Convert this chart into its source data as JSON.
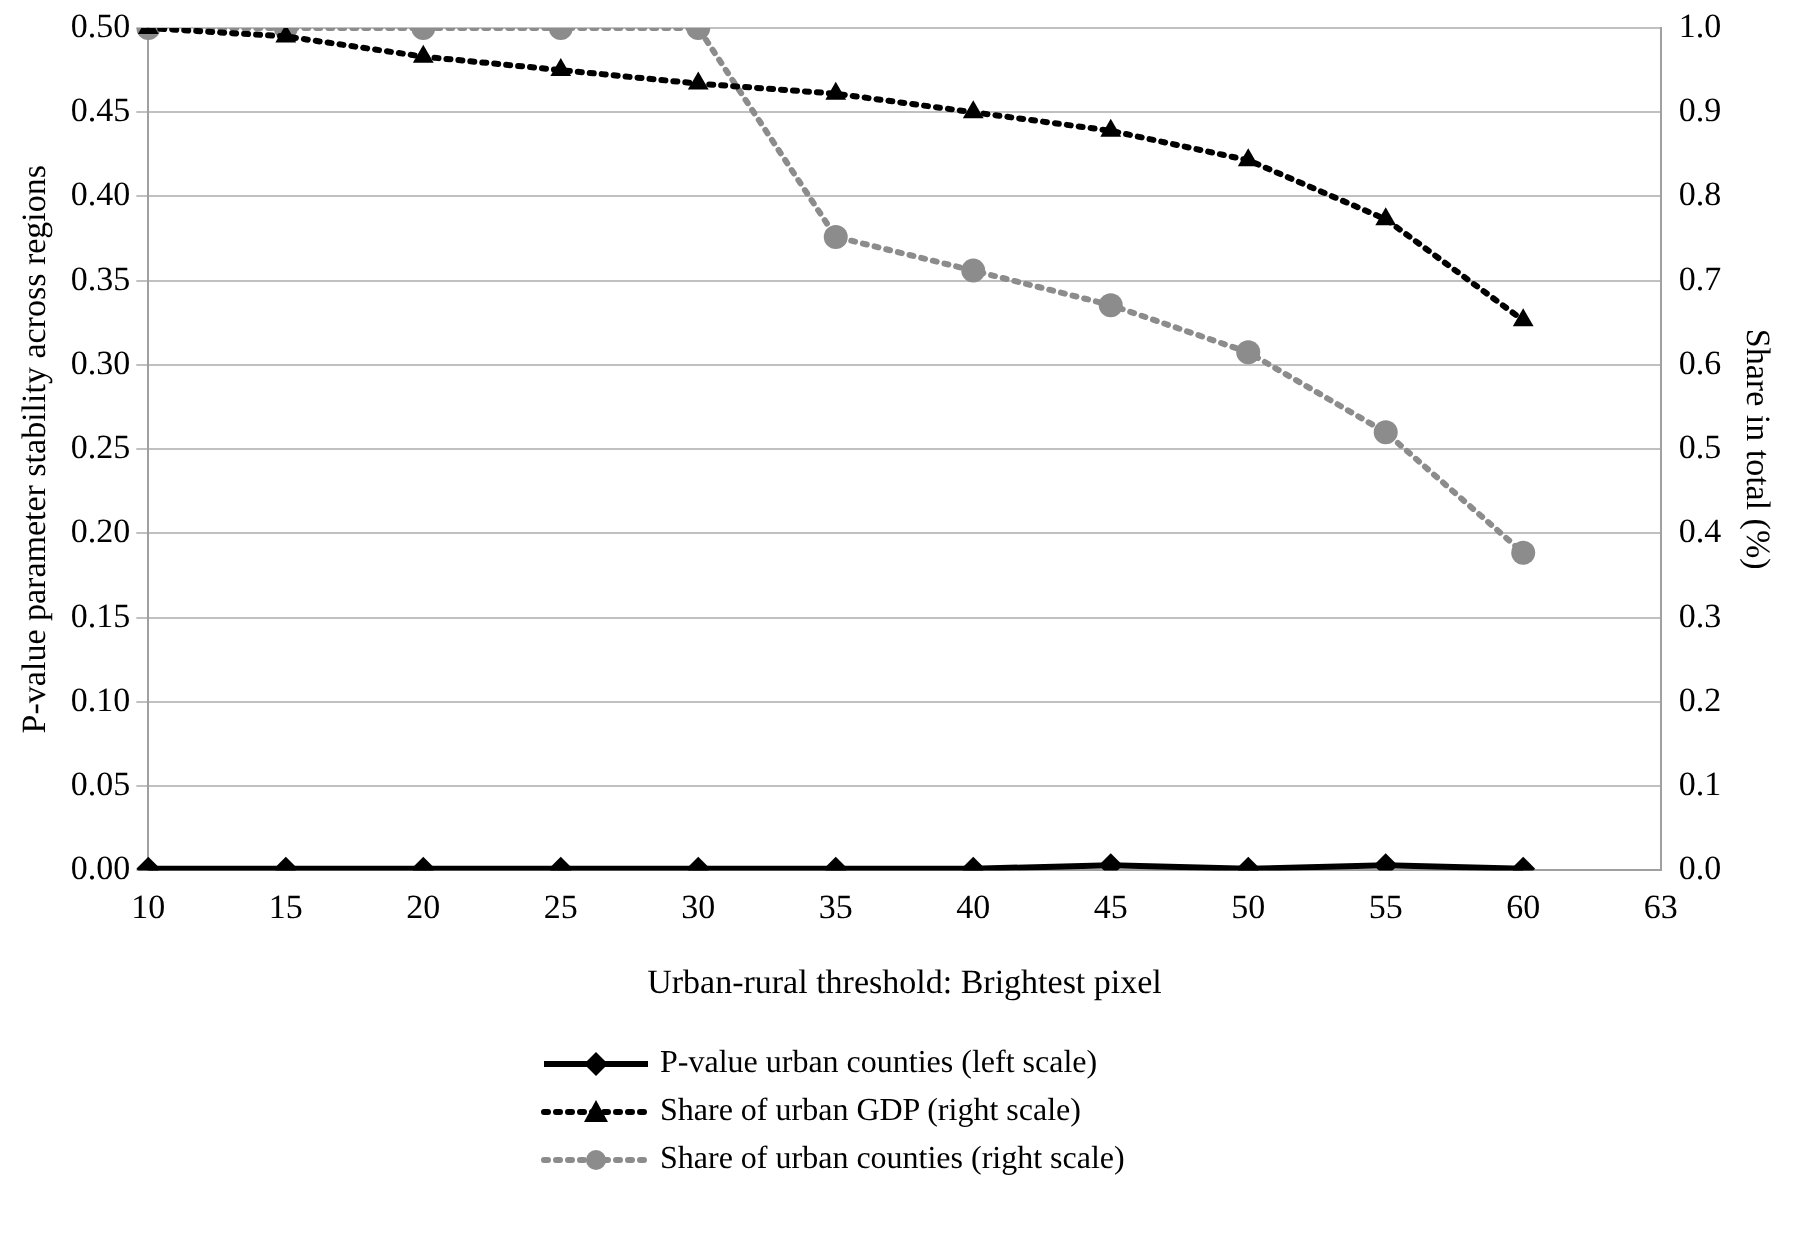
{
  "chart_data": {
    "type": "line",
    "xlabel": "Urban-rural threshold: Brightest pixel",
    "ylabel": "P-value parameter stability across regions",
    "y2label": "Share in total (%)",
    "categories": [
      "10",
      "15",
      "20",
      "25",
      "30",
      "35",
      "40",
      "45",
      "50",
      "55",
      "60",
      "63"
    ],
    "series": [
      {
        "name": "P-value urban counties (left scale)",
        "color": "#000000",
        "axis": "y",
        "marker": "diamond",
        "line_style": "solid",
        "values": [
          0.001,
          0.001,
          0.001,
          0.001,
          0.001,
          0.001,
          0.001,
          0.003,
          0.001,
          0.003,
          0.001,
          null
        ]
      },
      {
        "name": "Share of urban GDP (right scale)",
        "color": "#000000",
        "axis": "y2",
        "marker": "triangle",
        "line_style": "dotted",
        "values": [
          1.0,
          0.99,
          0.966,
          0.95,
          0.934,
          0.922,
          0.9,
          0.878,
          0.843,
          0.773,
          0.653,
          null
        ]
      },
      {
        "name": "Share of urban counties (right scale)",
        "color": "#8c8c8c",
        "axis": "y2",
        "marker": "circle",
        "line_style": "dotted",
        "values": [
          1.0,
          1.0,
          1.0,
          1.0,
          1.0,
          0.752,
          0.712,
          0.671,
          0.615,
          0.52,
          0.377,
          null
        ]
      }
    ],
    "ylim": [
      0,
      0.5
    ],
    "yticks": [
      {
        "value": 0,
        "label": "0.00"
      },
      {
        "value": 0.05,
        "label": "0.05"
      },
      {
        "value": 0.1,
        "label": "0.10"
      },
      {
        "value": 0.15,
        "label": "0.15"
      },
      {
        "value": 0.2,
        "label": "0.20"
      },
      {
        "value": 0.25,
        "label": "0.25"
      },
      {
        "value": 0.3,
        "label": "0.30"
      },
      {
        "value": 0.35,
        "label": "0.35"
      },
      {
        "value": 0.4,
        "label": "0.40"
      },
      {
        "value": 0.45,
        "label": "0.45"
      },
      {
        "value": 0.5,
        "label": "0.50"
      }
    ],
    "y2lim": [
      0,
      1
    ],
    "y2ticks": [
      {
        "value": 0,
        "label": "0.0"
      },
      {
        "value": 0.1,
        "label": "0.1"
      },
      {
        "value": 0.2,
        "label": "0.2"
      },
      {
        "value": 0.3,
        "label": "0.3"
      },
      {
        "value": 0.4,
        "label": "0.4"
      },
      {
        "value": 0.5,
        "label": "0.5"
      },
      {
        "value": 0.6,
        "label": "0.6"
      },
      {
        "value": 0.7,
        "label": "0.7"
      },
      {
        "value": 0.8,
        "label": "0.8"
      },
      {
        "value": 0.9,
        "label": "0.9"
      },
      {
        "value": 1,
        "label": "1.0"
      }
    ],
    "grid": "y",
    "legend": "bottom"
  }
}
